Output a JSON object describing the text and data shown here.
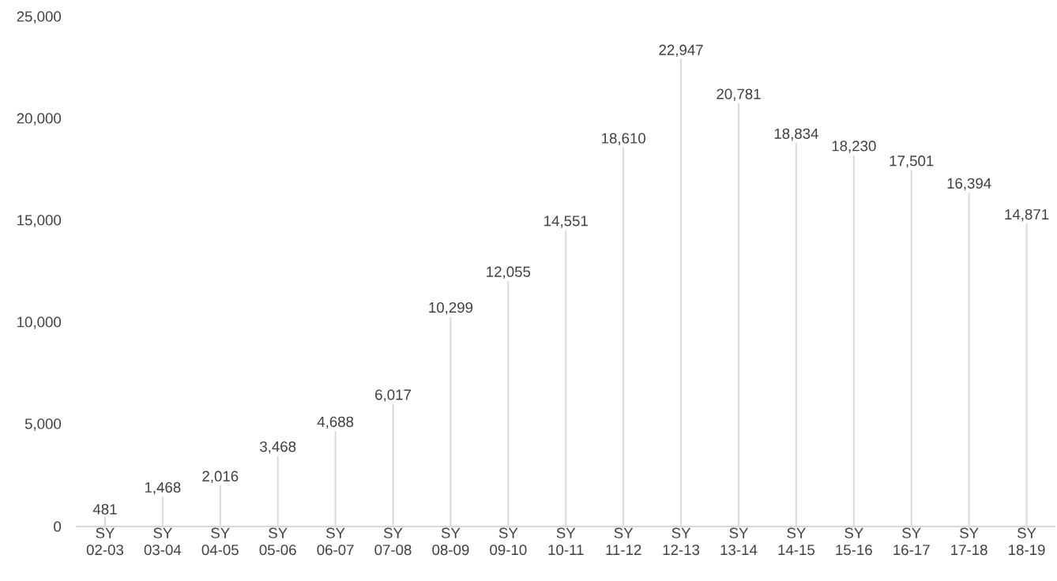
{
  "chart_data": {
    "type": "bar",
    "categories": [
      "SY 02-03",
      "SY 03-04",
      "SY 04-05",
      "SY 05-06",
      "SY 06-07",
      "SY 07-08",
      "SY 08-09",
      "SY 09-10",
      "SY 10-11",
      "SY 11-12",
      "SY 12-13",
      "SY 13-14",
      "SY 14-15",
      "SY 15-16",
      "SY 16-17",
      "SY 17-18",
      "SY 18-19"
    ],
    "values": [
      481,
      1468,
      2016,
      3468,
      4688,
      6017,
      10299,
      12055,
      14551,
      18610,
      22947,
      20781,
      18834,
      18230,
      17501,
      16394,
      14871
    ],
    "value_labels": [
      "481",
      "1,468",
      "2,016",
      "3,468",
      "4,688",
      "6,017",
      "10,299",
      "12,055",
      "14,551",
      "18,610",
      "22,947",
      "20,781",
      "18,834",
      "18,230",
      "17,501",
      "16,394",
      "14,871"
    ],
    "color": "#d9d9d9",
    "ylim": [
      0,
      25000
    ],
    "yticks": [
      {
        "value": 0,
        "label": "0"
      },
      {
        "value": 5000,
        "label": "5,000"
      },
      {
        "value": 10000,
        "label": "10,000"
      },
      {
        "value": 15000,
        "label": "15,000"
      },
      {
        "value": 20000,
        "label": "20,000"
      },
      {
        "value": 25000,
        "label": "25,000"
      }
    ]
  }
}
